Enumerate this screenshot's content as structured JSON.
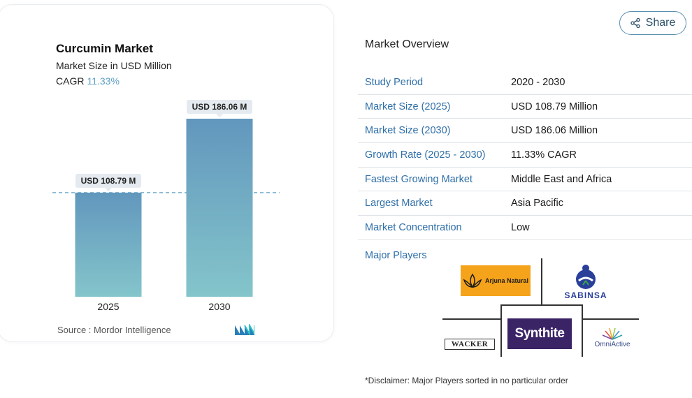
{
  "chart_data": {
    "type": "bar",
    "title": "Curcumin Market",
    "subtitle": "Market Size in USD Million",
    "cagr_label": "CAGR",
    "cagr_value": "11.33%",
    "categories": [
      "2025",
      "2030"
    ],
    "values": [
      108.79,
      186.06
    ],
    "data_labels": [
      "USD 108.79 M",
      "USD 186.06 M"
    ],
    "reference_line_value": 108.79,
    "grid": false,
    "colors": {
      "bar_top": "#6297bd",
      "bar_bottom": "#84c5cb",
      "dashed_line": "#5d9fc6"
    }
  },
  "source": "Source :  Mordor Intelligence",
  "share": {
    "label": "Share",
    "icon": "share-icon"
  },
  "overview": {
    "title": "Market Overview",
    "rows": [
      {
        "key": "Study Period",
        "value": "2020 - 2030"
      },
      {
        "key": "Market Size (2025)",
        "value": "USD 108.79 Million"
      },
      {
        "key": "Market Size (2030)",
        "value": "USD 186.06 Million"
      },
      {
        "key": "Growth Rate (2025 - 2030)",
        "value": "11.33% CAGR"
      },
      {
        "key": "Fastest Growing Market",
        "value": "Middle East and Africa"
      },
      {
        "key": "Largest Market",
        "value": "Asia Pacific"
      },
      {
        "key": "Market Concentration",
        "value": "Low"
      }
    ],
    "major_players_label": "Major Players",
    "players": {
      "arjuna": "Arjuna Natural",
      "sabinsa": "SABINSA",
      "synthite": "Synthite",
      "wacker": "WACKER",
      "omniactive": "OmniActive"
    },
    "disclaimer": "*Disclaimer: Major Players sorted in no particular order"
  }
}
